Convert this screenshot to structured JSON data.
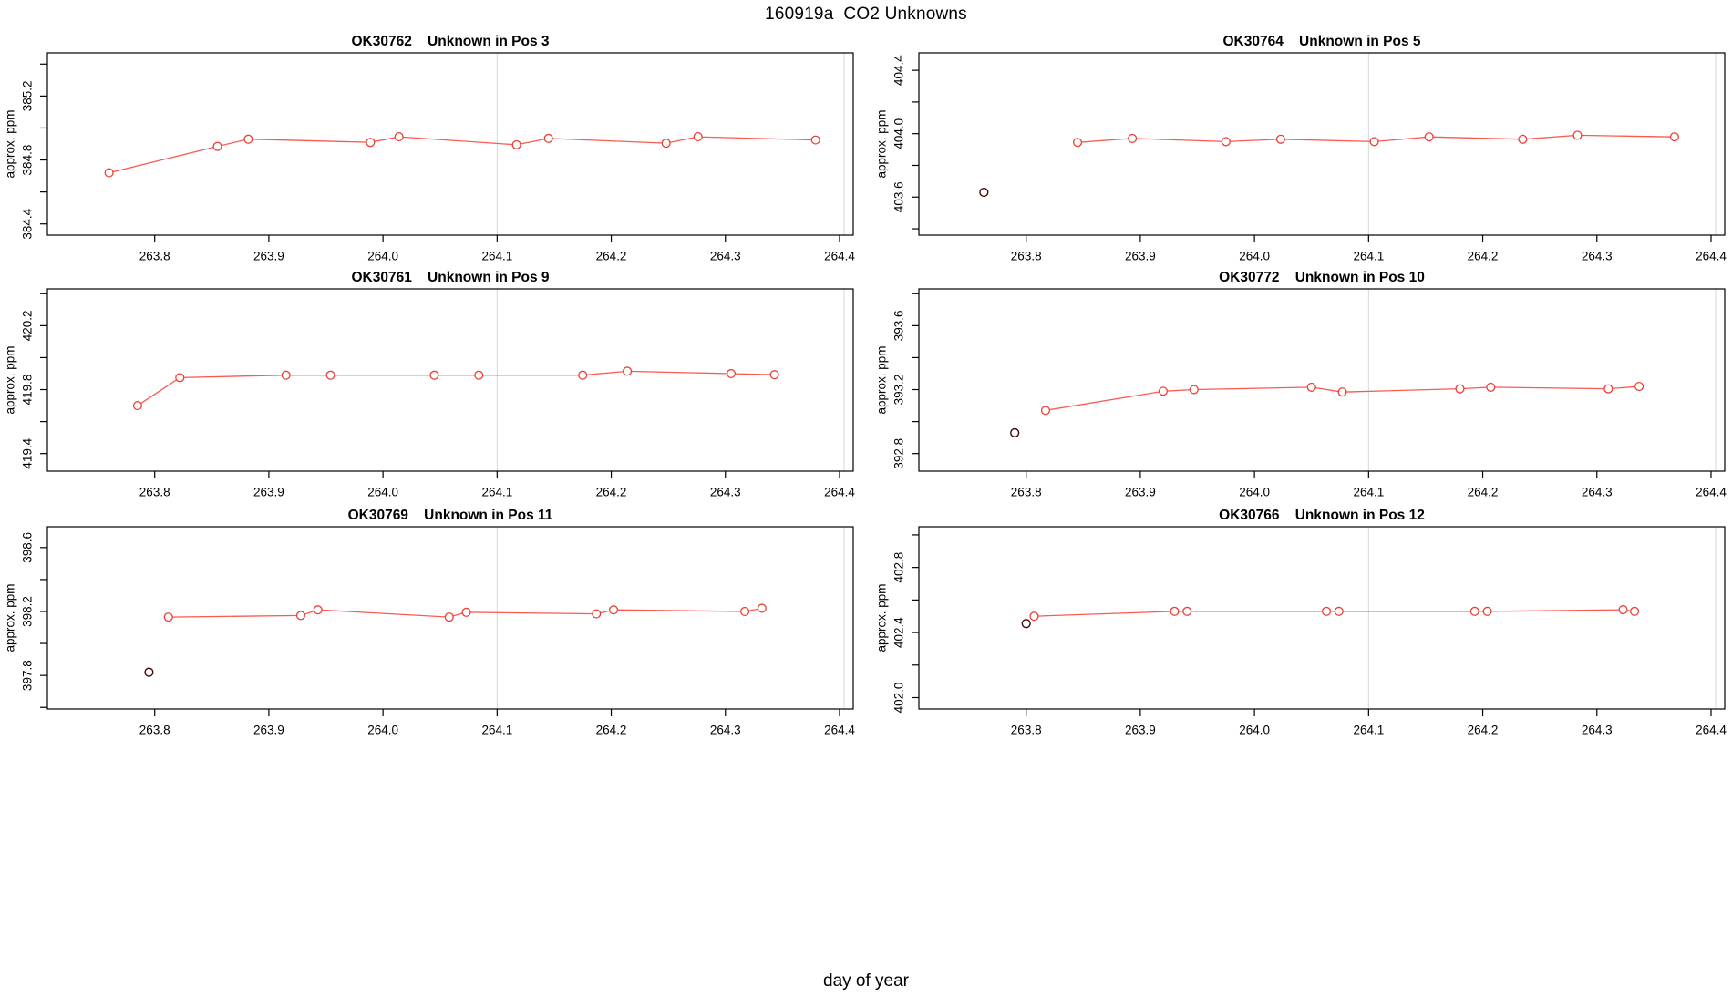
{
  "suptitle": "160919a  CO2 Unknowns",
  "xlabel": "day of year",
  "chart_data": {
    "type": "line",
    "title": "160919a  CO2 Unknowns",
    "xlabel": "day of year",
    "ylabel": "approx. ppm",
    "x_ticks": [
      263.8,
      263.9,
      264.0,
      264.1,
      264.2,
      264.3,
      264.4
    ],
    "xlim": [
      263.706,
      264.412
    ],
    "gridlines_x": [
      264.1,
      264.404
    ],
    "grid": "vertical-only",
    "legend": "none",
    "colors": {
      "series_line": "#fa5a50",
      "series_marker": "#ee3f36",
      "outlier_marker": "#400808",
      "gridline": "#d8d8d8",
      "axis": "#000000",
      "background": "#ffffff"
    },
    "panels": [
      {
        "sample_id": "OK30762",
        "subtitle": "Unknown in Pos 3",
        "title": "OK30762    Unknown in Pos 3",
        "ylabel": "approx. ppm",
        "ylim": [
          384.33,
          385.47
        ],
        "y_tick_step": 0.2,
        "y_labeled_ticks": [
          384.4,
          384.8,
          385.2
        ],
        "line_points": [
          [
            263.76,
            384.72
          ],
          [
            263.855,
            384.885
          ],
          [
            263.882,
            384.93
          ],
          [
            263.989,
            384.91
          ],
          [
            264.014,
            384.945
          ],
          [
            264.117,
            384.895
          ],
          [
            264.145,
            384.935
          ],
          [
            264.248,
            384.905
          ],
          [
            264.276,
            384.945
          ],
          [
            264.379,
            384.925
          ]
        ],
        "outlier_points": []
      },
      {
        "sample_id": "OK30764",
        "subtitle": "Unknown in Pos 5",
        "title": "OK30764    Unknown in Pos 5",
        "ylabel": "approx. ppm",
        "ylim": [
          403.36,
          404.51
        ],
        "y_tick_step": 0.2,
        "y_labeled_ticks": [
          403.6,
          404.0,
          404.4
        ],
        "line_points": [
          [
            263.845,
            403.945
          ],
          [
            263.893,
            403.97
          ],
          [
            263.975,
            403.95
          ],
          [
            264.023,
            403.965
          ],
          [
            264.105,
            403.95
          ],
          [
            264.153,
            403.98
          ],
          [
            264.235,
            403.965
          ],
          [
            264.283,
            403.99
          ],
          [
            264.368,
            403.98
          ]
        ],
        "outlier_points": [
          [
            263.763,
            403.63
          ]
        ]
      },
      {
        "sample_id": "OK30761",
        "subtitle": "Unknown in Pos 9",
        "title": "OK30761    Unknown in Pos 9",
        "ylabel": "approx. ppm",
        "ylim": [
          419.29,
          420.43
        ],
        "y_tick_step": 0.2,
        "y_labeled_ticks": [
          419.4,
          419.8,
          420.2
        ],
        "line_points": [
          [
            263.785,
            419.7
          ],
          [
            263.822,
            419.875
          ],
          [
            263.915,
            419.89
          ],
          [
            263.954,
            419.89
          ],
          [
            264.045,
            419.89
          ],
          [
            264.084,
            419.89
          ],
          [
            264.175,
            419.89
          ],
          [
            264.214,
            419.915
          ],
          [
            264.305,
            419.9
          ],
          [
            264.343,
            419.893
          ]
        ],
        "outlier_points": []
      },
      {
        "sample_id": "OK30772",
        "subtitle": "Unknown in Pos 10",
        "title": "OK30772    Unknown in Pos 10",
        "ylabel": "approx. ppm",
        "ylim": [
          392.69,
          393.83
        ],
        "y_tick_step": 0.2,
        "y_labeled_ticks": [
          392.8,
          393.2,
          393.6
        ],
        "line_points": [
          [
            263.817,
            393.07
          ],
          [
            263.92,
            393.19
          ],
          [
            263.947,
            393.2
          ],
          [
            264.05,
            393.215
          ],
          [
            264.077,
            393.185
          ],
          [
            264.18,
            393.205
          ],
          [
            264.207,
            393.215
          ],
          [
            264.31,
            393.205
          ],
          [
            264.337,
            393.22
          ]
        ],
        "outlier_points": [
          [
            263.79,
            392.93
          ]
        ]
      },
      {
        "sample_id": "OK30769",
        "subtitle": "Unknown in Pos 11",
        "title": "OK30769    Unknown in Pos 11",
        "ylabel": "approx. ppm",
        "ylim": [
          397.59,
          398.73
        ],
        "y_tick_step": 0.2,
        "y_labeled_ticks": [
          397.8,
          398.2,
          398.6
        ],
        "line_points": [
          [
            263.812,
            398.165
          ],
          [
            263.928,
            398.175
          ],
          [
            263.943,
            398.21
          ],
          [
            264.058,
            398.165
          ],
          [
            264.073,
            398.195
          ],
          [
            264.187,
            398.185
          ],
          [
            264.202,
            398.21
          ],
          [
            264.317,
            398.2
          ],
          [
            264.332,
            398.22
          ]
        ],
        "outlier_points": [
          [
            263.795,
            397.82
          ]
        ]
      },
      {
        "sample_id": "OK30766",
        "subtitle": "Unknown in Pos 12",
        "title": "OK30766    Unknown in Pos 12",
        "ylabel": "approx. ppm",
        "ylim": [
          401.93,
          403.05
        ],
        "y_tick_step": 0.2,
        "y_labeled_ticks": [
          402.0,
          402.4,
          402.8
        ],
        "line_points": [
          [
            263.807,
            402.5
          ],
          [
            263.93,
            402.53
          ],
          [
            263.941,
            402.53
          ],
          [
            264.063,
            402.53
          ],
          [
            264.074,
            402.53
          ],
          [
            264.193,
            402.53
          ],
          [
            264.204,
            402.53
          ],
          [
            264.323,
            402.54
          ],
          [
            264.333,
            402.53
          ]
        ],
        "outlier_points": [
          [
            263.8,
            402.455
          ]
        ]
      }
    ]
  }
}
